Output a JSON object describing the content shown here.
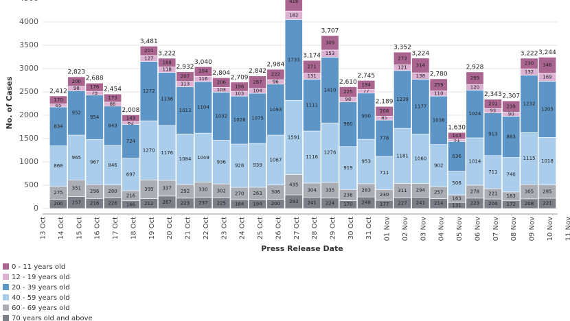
{
  "chart_data": {
    "type": "stacked_bar",
    "x_label": "Press Release Date",
    "y_label": "No. of Cases",
    "categories": [
      "13 Oct",
      "14 Oct",
      "15 Oct",
      "16 Oct",
      "17 Oct",
      "18 Oct",
      "19 Oct",
      "20 Oct",
      "21 Oct",
      "22 Oct",
      "23 Oct",
      "24 Oct",
      "25 Oct",
      "26 Oct",
      "27 Oct",
      "28 Oct",
      "29 Oct",
      "30 Oct",
      "31 Oct",
      "01 Nov",
      "02 Nov",
      "03 Nov",
      "04 Nov",
      "05 Nov",
      "06 Nov",
      "07 Nov",
      "08 Nov",
      "09 Nov",
      "10 Nov",
      "11 Nov"
    ],
    "series": [
      {
        "name": "70 years old and above",
        "color": "#7b7f88",
        "values": [
          null,
          200,
          257,
          216,
          226,
          166,
          212,
          267,
          223,
          237,
          225,
          184,
          194,
          200,
          293,
          241,
          224,
          170,
          248,
          177,
          227,
          241,
          214,
          131,
          223,
          204,
          172,
          208,
          221,
          null
        ]
      },
      {
        "name": "60 - 69 years old",
        "color": "#aaadb4",
        "values": [
          null,
          275,
          351,
          296,
          280,
          216,
          399,
          337,
          292,
          330,
          302,
          270,
          263,
          306,
          435,
          304,
          335,
          238,
          283,
          230,
          311,
          294,
          257,
          163,
          278,
          221,
          183,
          305,
          285,
          null
        ]
      },
      {
        "name": "40 - 59 years old",
        "color": "#a9cdeb",
        "values": [
          null,
          868,
          965,
          967,
          846,
          697,
          1270,
          1176,
          1084,
          1049,
          936,
          928,
          939,
          1067,
          1591,
          1116,
          1276,
          919,
          953,
          711,
          1181,
          1060,
          902,
          506,
          1014,
          711,
          740,
          1115,
          1018,
          null
        ]
      },
      {
        "name": "20 - 39 years old",
        "color": "#5e95c7",
        "values": [
          null,
          834,
          952,
          954,
          843,
          724,
          1272,
          1136,
          1013,
          1104,
          1032,
          1028,
          1075,
          1093,
          1733,
          1111,
          1410,
          960,
          990,
          778,
          1239,
          1177,
          1038,
          636,
          1024,
          913,
          883,
          1232,
          1205,
          null
        ]
      },
      {
        "name": "12 - 19 years old",
        "color": "#dcb1d4",
        "values": [
          null,
          65,
          98,
          79,
          86,
          62,
          127,
          118,
          113,
          116,
          103,
          103,
          104,
          96,
          182,
          131,
          153,
          98,
          77,
          85,
          121,
          138,
          110,
          51,
          120,
          93,
          90,
          132,
          169,
          null
        ]
      },
      {
        "name": "0 - 11 years old",
        "color": "#a9648f",
        "values": [
          null,
          170,
          200,
          176,
          173,
          143,
          201,
          188,
          207,
          204,
          206,
          196,
          267,
          222,
          416,
          271,
          309,
          225,
          194,
          208,
          273,
          314,
          259,
          143,
          269,
          201,
          239,
          230,
          346,
          null
        ]
      }
    ],
    "totals": {
      "values": [
        null,
        2412,
        2823,
        2688,
        2454,
        2008,
        3481,
        3222,
        2932,
        3040,
        2804,
        2709,
        2842,
        2984,
        null,
        3174,
        3707,
        2610,
        2745,
        2189,
        3352,
        3224,
        2780,
        1630,
        2928,
        2343,
        2307,
        3222,
        3244,
        null
      ],
      "value_labels": [
        null,
        "2,412",
        "2,823",
        "2,688",
        "2,454",
        "2,008",
        "3,481",
        "3,222",
        "2,932",
        "3,040",
        "2,804",
        "2,709",
        "2,842",
        "2,984",
        null,
        "3,174",
        "3,707",
        "2,610",
        "2,745",
        "2,189",
        "3,352",
        "3,224",
        "2,780",
        "1,630",
        "2,928",
        "2,343",
        "2,307",
        "3,222",
        "3,244",
        null
      ]
    },
    "ylim": [
      0,
      4500
    ],
    "yticks": [
      0,
      500,
      1000,
      1500,
      2000,
      2500,
      3000,
      3500,
      4000,
      4500
    ],
    "grid": true
  }
}
